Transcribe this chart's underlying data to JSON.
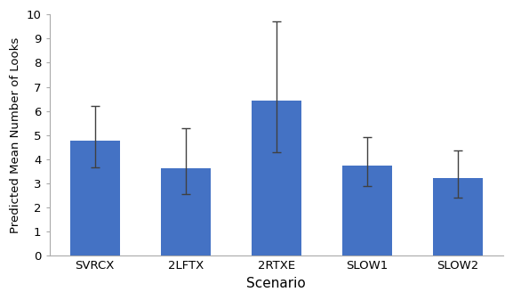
{
  "categories": [
    "SVRCX",
    "2LFTX",
    "2RTXE",
    "SLOW1",
    "SLOW2"
  ],
  "values": [
    4.7681,
    3.629,
    6.425,
    3.7432,
    3.2105
  ],
  "error_upper": [
    1.43,
    1.67,
    3.27,
    1.16,
    1.14
  ],
  "error_lower": [
    1.1,
    1.08,
    2.13,
    0.84,
    0.81
  ],
  "bar_color": "#4472C4",
  "bar_edgecolor": "none",
  "errorbar_color": "#404040",
  "xlabel": "Scenario",
  "ylabel": "Predicted Mean Number of Looks",
  "ylim": [
    0,
    10
  ],
  "yticks": [
    0,
    1,
    2,
    3,
    4,
    5,
    6,
    7,
    8,
    9,
    10
  ],
  "xlabel_fontsize": 11,
  "ylabel_fontsize": 9.5,
  "tick_fontsize": 9.5,
  "background_color": "#ffffff",
  "figure_background": "#ffffff"
}
